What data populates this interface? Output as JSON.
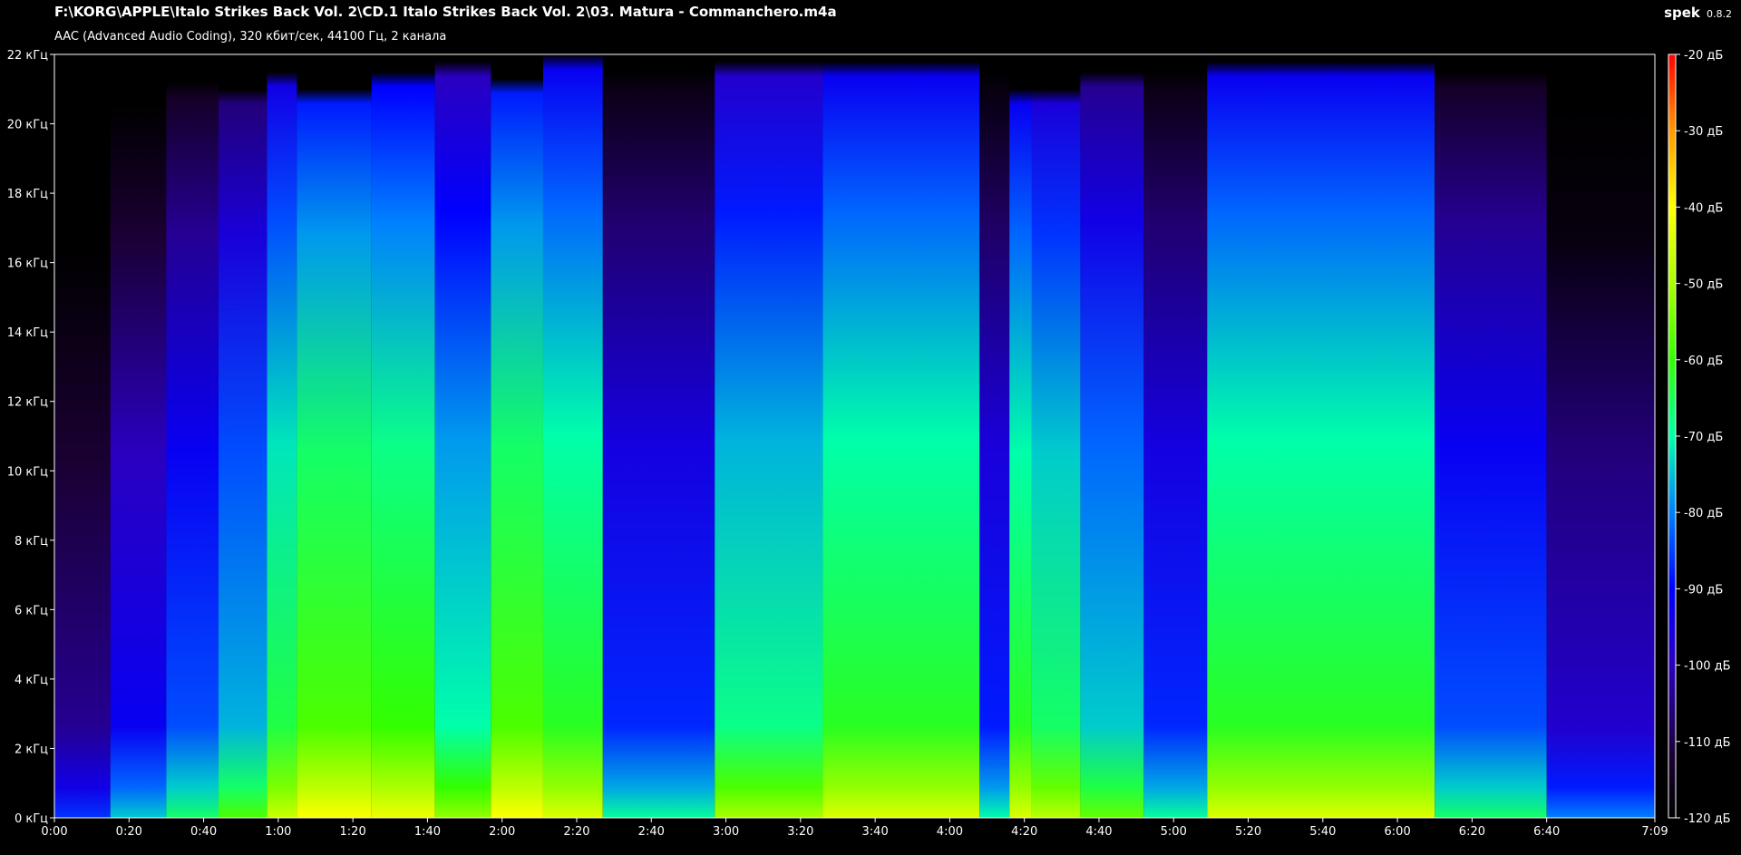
{
  "header": {
    "file_path": "F:\\KORG\\APPLE\\Italo Strikes Back Vol. 2\\CD.1 Italo Strikes Back Vol. 2\\03. Matura - Commanchero.m4a",
    "file_info": "AAC (Advanced Audio Coding), 320 кбит/сек, 44100 Гц, 2 канала",
    "app_name": "spek",
    "app_version": "0.8.2"
  },
  "colors": {
    "background": "#000000",
    "text": "#ffffff",
    "palette": [
      "#000000",
      "#1a0033",
      "#2a00a0",
      "#0000ff",
      "#0066ff",
      "#00ccff",
      "#00ff99",
      "#33ff00",
      "#99ff00",
      "#ffff00",
      "#ff9900",
      "#ff0000"
    ]
  },
  "chart_data": {
    "type": "heatmap",
    "title": "",
    "xlabel": "",
    "ylabel": "",
    "x_unit": "time",
    "y_unit": "кГц",
    "xlim_seconds": [
      0,
      429
    ],
    "ylim_khz": [
      0,
      22
    ],
    "x_ticks": [
      "0:00",
      "0:20",
      "0:40",
      "1:00",
      "1:20",
      "1:40",
      "2:00",
      "2:20",
      "2:40",
      "3:00",
      "3:20",
      "3:40",
      "4:00",
      "4:20",
      "4:40",
      "5:00",
      "5:20",
      "5:40",
      "6:00",
      "6:20",
      "6:40",
      "7:09"
    ],
    "x_tick_seconds": [
      0,
      20,
      40,
      60,
      80,
      100,
      120,
      140,
      160,
      180,
      200,
      220,
      240,
      260,
      280,
      300,
      320,
      340,
      360,
      380,
      400,
      429
    ],
    "y_ticks": [
      "0 кГц",
      "2 кГц",
      "4 кГц",
      "6 кГц",
      "8 кГц",
      "10 кГц",
      "12 кГц",
      "14 кГц",
      "16 кГц",
      "18 кГц",
      "20 кГц",
      "22 кГц"
    ],
    "y_tick_khz": [
      0,
      2,
      4,
      6,
      8,
      10,
      12,
      14,
      16,
      18,
      20,
      22
    ],
    "colorbar_ticks": [
      "-20 дБ",
      "-30 дБ",
      "-40 дБ",
      "-50 дБ",
      "-60 дБ",
      "-70 дБ",
      "-80 дБ",
      "-90 дБ",
      "-100 дБ",
      "-110 дБ",
      "-120 дБ"
    ],
    "colorbar_db": [
      -20,
      -30,
      -40,
      -50,
      -60,
      -70,
      -80,
      -90,
      -100,
      -110,
      -120
    ],
    "segments": [
      {
        "start": 0,
        "end": 15,
        "level": -112,
        "cutoff_khz": 20.5
      },
      {
        "start": 15,
        "end": 30,
        "level": -100,
        "cutoff_khz": 21
      },
      {
        "start": 30,
        "end": 44,
        "level": -92,
        "cutoff_khz": 21.2
      },
      {
        "start": 44,
        "end": 57,
        "level": -84,
        "cutoff_khz": 21
      },
      {
        "start": 57,
        "end": 65,
        "level": -72,
        "cutoff_khz": 21.5
      },
      {
        "start": 65,
        "end": 85,
        "level": -66,
        "cutoff_khz": 21
      },
      {
        "start": 85,
        "end": 102,
        "level": -68,
        "cutoff_khz": 21.5
      },
      {
        "start": 102,
        "end": 117,
        "level": -78,
        "cutoff_khz": 21.8
      },
      {
        "start": 117,
        "end": 131,
        "level": -66,
        "cutoff_khz": 21.3
      },
      {
        "start": 131,
        "end": 147,
        "level": -70,
        "cutoff_khz": 22
      },
      {
        "start": 147,
        "end": 177,
        "level": -95,
        "cutoff_khz": 21.5
      },
      {
        "start": 177,
        "end": 206,
        "level": -76,
        "cutoff_khz": 21.8
      },
      {
        "start": 206,
        "end": 248,
        "level": -70,
        "cutoff_khz": 21.8
      },
      {
        "start": 248,
        "end": 256,
        "level": -96,
        "cutoff_khz": 21.5
      },
      {
        "start": 256,
        "end": 262,
        "level": -70,
        "cutoff_khz": 21
      },
      {
        "start": 262,
        "end": 275,
        "level": -74,
        "cutoff_khz": 21
      },
      {
        "start": 275,
        "end": 292,
        "level": -82,
        "cutoff_khz": 21.5
      },
      {
        "start": 292,
        "end": 309,
        "level": -95,
        "cutoff_khz": 21.5
      },
      {
        "start": 309,
        "end": 370,
        "level": -70,
        "cutoff_khz": 21.8
      },
      {
        "start": 370,
        "end": 400,
        "level": -92,
        "cutoff_khz": 21.5
      },
      {
        "start": 400,
        "end": 429,
        "level": -106,
        "cutoff_khz": 21
      }
    ]
  }
}
